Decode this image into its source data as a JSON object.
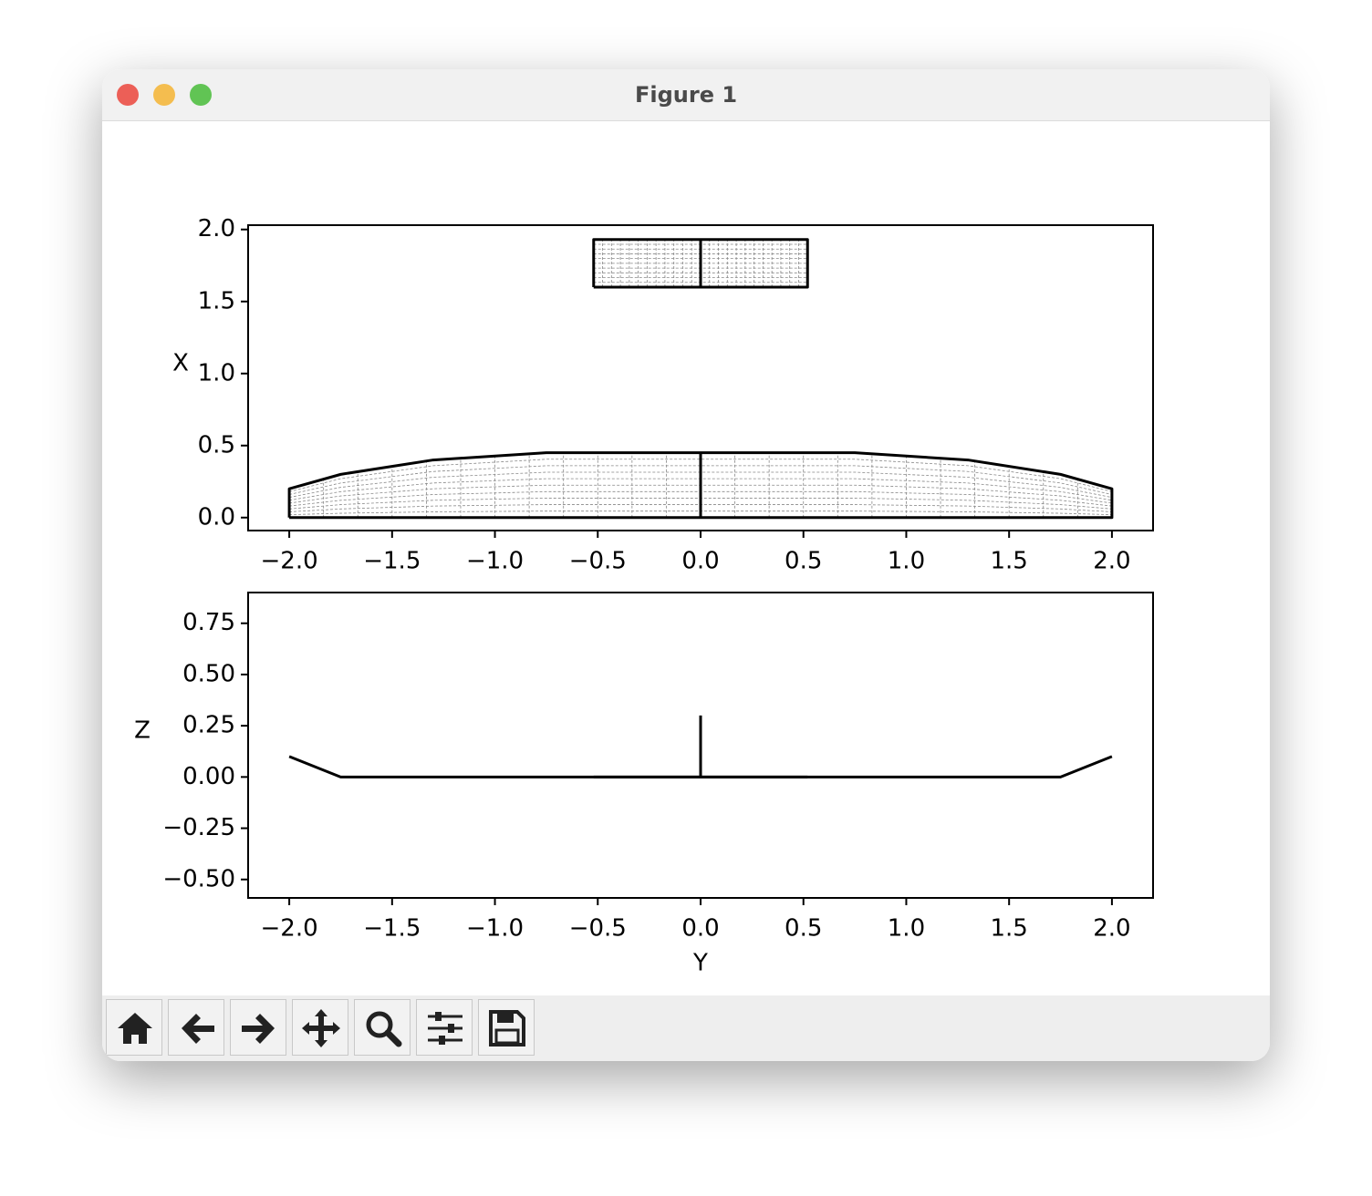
{
  "window": {
    "title": "Figure 1"
  },
  "chart_data": [
    {
      "type": "line",
      "ylabel": "X",
      "xlim": [
        -2.2,
        2.2
      ],
      "ylim": [
        -0.09,
        2.03
      ],
      "xticks": [
        {
          "value": -2,
          "label": "−2.0"
        },
        {
          "value": -1.5,
          "label": "−1.5"
        },
        {
          "value": -1,
          "label": "−1.0"
        },
        {
          "value": -0.5,
          "label": "−0.5"
        },
        {
          "value": 0,
          "label": "0.0"
        },
        {
          "value": 0.5,
          "label": "0.5"
        },
        {
          "value": 1,
          "label": "1.0"
        },
        {
          "value": 1.5,
          "label": "1.5"
        },
        {
          "value": 2,
          "label": "2.0"
        }
      ],
      "yticks": [
        {
          "value": 0,
          "label": "0.0"
        },
        {
          "value": 0.5,
          "label": "0.5"
        },
        {
          "value": 1,
          "label": "1.0"
        },
        {
          "value": 1.5,
          "label": "1.5"
        },
        {
          "value": 2,
          "label": "2.0"
        }
      ],
      "mesh": true,
      "series": [
        {
          "color": "#000000",
          "x": [
            -2,
            -2,
            -1.75,
            -1.3,
            -0.75,
            0,
            0.75,
            1.3,
            1.75,
            2,
            2,
            -2
          ],
          "values": [
            0,
            0.2,
            0.3,
            0.4,
            0.45,
            0.45,
            0.45,
            0.4,
            0.3,
            0.2,
            0,
            0
          ]
        },
        {
          "color": "#000000",
          "x": [
            0,
            0
          ],
          "values": [
            0,
            0.45
          ]
        },
        {
          "color": "#000000",
          "x": [
            -0.52,
            -0.52,
            0.52,
            0.52,
            -0.52
          ],
          "values": [
            1.6,
            1.93,
            1.93,
            1.6,
            1.6
          ]
        },
        {
          "color": "#000000",
          "x": [
            0,
            0
          ],
          "values": [
            1.6,
            1.93
          ]
        }
      ]
    },
    {
      "type": "line",
      "ylabel": "Z",
      "xlabel": "Y",
      "xlim": [
        -2.2,
        2.2
      ],
      "ylim": [
        -0.59,
        0.9
      ],
      "xticks": [
        {
          "value": -2,
          "label": "−2.0"
        },
        {
          "value": -1.5,
          "label": "−1.5"
        },
        {
          "value": -1,
          "label": "−1.0"
        },
        {
          "value": -0.5,
          "label": "−0.5"
        },
        {
          "value": 0,
          "label": "0.0"
        },
        {
          "value": 0.5,
          "label": "0.5"
        },
        {
          "value": 1,
          "label": "1.0"
        },
        {
          "value": 1.5,
          "label": "1.5"
        },
        {
          "value": 2,
          "label": "2.0"
        }
      ],
      "yticks": [
        {
          "value": -0.5,
          "label": "−0.50"
        },
        {
          "value": -0.25,
          "label": "−0.25"
        },
        {
          "value": 0,
          "label": "0.00"
        },
        {
          "value": 0.25,
          "label": "0.25"
        },
        {
          "value": 0.5,
          "label": "0.50"
        },
        {
          "value": 0.75,
          "label": "0.75"
        }
      ],
      "mesh": false,
      "series": [
        {
          "color": "#000000",
          "x": [
            -2,
            -1.75,
            1.75,
            2
          ],
          "values": [
            0.1,
            0,
            0,
            0.1
          ]
        },
        {
          "color": "#000000",
          "x": [
            0,
            0
          ],
          "values": [
            0,
            0.3
          ]
        },
        {
          "color": "#000000",
          "x": [
            -0.52,
            0.52
          ],
          "values": [
            0,
            0
          ]
        }
      ]
    }
  ]
}
